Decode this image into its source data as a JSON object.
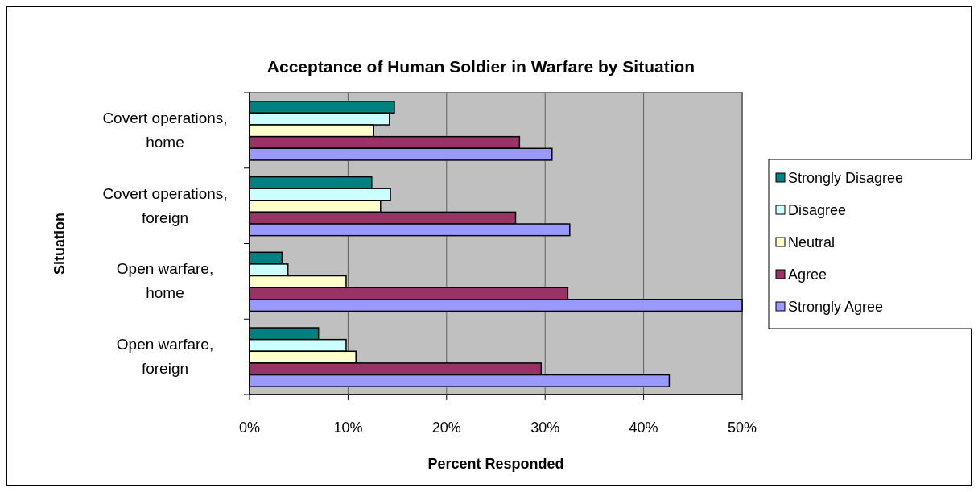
{
  "chart_data": {
    "type": "bar",
    "orientation": "horizontal",
    "title": "Acceptance of Human Soldier in Warfare by Situation",
    "xlabel": "Percent Responded",
    "ylabel": "Situation",
    "categories": [
      "Covert operations, home",
      "Covert operations, foreign",
      "Open warfare, home",
      "Open warfare, foreign"
    ],
    "series": [
      {
        "name": "Strongly Disagree",
        "color": "#008080",
        "values": [
          14.7,
          12.4,
          3.3,
          7.0
        ]
      },
      {
        "name": "Disagree",
        "color": "#ccffff",
        "values": [
          14.2,
          14.3,
          3.9,
          9.8
        ]
      },
      {
        "name": "Neutral",
        "color": "#ffffcc",
        "values": [
          12.6,
          13.3,
          9.8,
          10.8
        ]
      },
      {
        "name": "Agree",
        "color": "#993366",
        "values": [
          27.4,
          27.0,
          32.3,
          29.6
        ]
      },
      {
        "name": "Strongly Agree",
        "color": "#9999ff",
        "values": [
          30.7,
          32.5,
          50,
          42.6
        ]
      }
    ],
    "xlim": [
      0,
      50
    ],
    "xticks": [
      {
        "value": 0,
        "label": "0%"
      },
      {
        "value": 10,
        "label": "10%"
      },
      {
        "value": 20,
        "label": "20%"
      },
      {
        "value": 30,
        "label": "30%"
      },
      {
        "value": 40,
        "label": "40%"
      },
      {
        "value": 50,
        "label": "50%"
      }
    ],
    "grid": "x",
    "legend": "right"
  }
}
